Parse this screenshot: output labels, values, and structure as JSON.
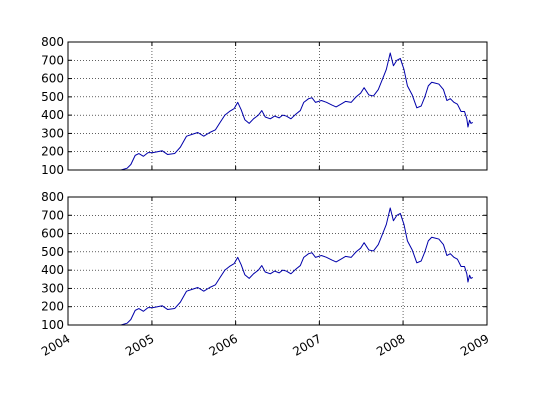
{
  "chart_data": [
    {
      "type": "line",
      "xlim": [
        "2004-01-01",
        "2009-01-01"
      ],
      "ylim": [
        100,
        800
      ],
      "yticks": [
        100,
        200,
        300,
        400,
        500,
        600,
        700,
        800
      ],
      "xticks": [
        "2004-01-01",
        "2005-01-01",
        "2006-01-01",
        "2007-01-01",
        "2008-01-01",
        "2009-01-01"
      ],
      "xtick_labels": [
        "2004",
        "2005",
        "2006",
        "2007",
        "2008",
        "2009"
      ],
      "show_xtick_labels": false,
      "grid": true,
      "series": [
        {
          "color": "#0000aa",
          "points": [
            [
              "2004-08-19",
              100
            ],
            [
              "2004-09-15",
              110
            ],
            [
              "2004-10-01",
              130
            ],
            [
              "2004-10-20",
              180
            ],
            [
              "2004-11-05",
              190
            ],
            [
              "2004-11-25",
              175
            ],
            [
              "2004-12-15",
              195
            ],
            [
              "2005-01-05",
              195
            ],
            [
              "2005-01-25",
              200
            ],
            [
              "2005-02-15",
              205
            ],
            [
              "2005-03-10",
              185
            ],
            [
              "2005-04-10",
              190
            ],
            [
              "2005-05-05",
              225
            ],
            [
              "2005-06-01",
              285
            ],
            [
              "2005-06-25",
              295
            ],
            [
              "2005-07-20",
              305
            ],
            [
              "2005-08-15",
              285
            ],
            [
              "2005-09-10",
              305
            ],
            [
              "2005-10-05",
              320
            ],
            [
              "2005-10-25",
              360
            ],
            [
              "2005-11-15",
              400
            ],
            [
              "2005-12-05",
              420
            ],
            [
              "2005-12-25",
              435
            ],
            [
              "2006-01-10",
              470
            ],
            [
              "2006-01-25",
              430
            ],
            [
              "2006-02-10",
              375
            ],
            [
              "2006-03-01",
              355
            ],
            [
              "2006-03-20",
              380
            ],
            [
              "2006-04-10",
              400
            ],
            [
              "2006-04-25",
              425
            ],
            [
              "2006-05-10",
              390
            ],
            [
              "2006-06-01",
              380
            ],
            [
              "2006-06-20",
              395
            ],
            [
              "2006-07-10",
              385
            ],
            [
              "2006-07-25",
              400
            ],
            [
              "2006-08-10",
              395
            ],
            [
              "2006-08-30",
              380
            ],
            [
              "2006-09-20",
              405
            ],
            [
              "2006-10-10",
              425
            ],
            [
              "2006-10-25",
              470
            ],
            [
              "2006-11-15",
              490
            ],
            [
              "2006-11-30",
              495
            ],
            [
              "2006-12-15",
              470
            ],
            [
              "2007-01-10",
              480
            ],
            [
              "2007-02-01",
              470
            ],
            [
              "2007-02-25",
              455
            ],
            [
              "2007-03-15",
              445
            ],
            [
              "2007-04-05",
              460
            ],
            [
              "2007-04-25",
              475
            ],
            [
              "2007-05-20",
              470
            ],
            [
              "2007-06-10",
              500
            ],
            [
              "2007-06-30",
              520
            ],
            [
              "2007-07-15",
              550
            ],
            [
              "2007-08-05",
              510
            ],
            [
              "2007-08-25",
              505
            ],
            [
              "2007-09-15",
              540
            ],
            [
              "2007-10-01",
              590
            ],
            [
              "2007-10-20",
              650
            ],
            [
              "2007-11-06",
              740
            ],
            [
              "2007-11-20",
              670
            ],
            [
              "2007-12-05",
              700
            ],
            [
              "2007-12-20",
              710
            ],
            [
              "2008-01-05",
              650
            ],
            [
              "2008-01-20",
              560
            ],
            [
              "2008-02-10",
              510
            ],
            [
              "2008-03-01",
              440
            ],
            [
              "2008-03-20",
              450
            ],
            [
              "2008-04-05",
              500
            ],
            [
              "2008-04-20",
              560
            ],
            [
              "2008-05-05",
              580
            ],
            [
              "2008-05-20",
              575
            ],
            [
              "2008-06-05",
              570
            ],
            [
              "2008-06-25",
              540
            ],
            [
              "2008-07-10",
              480
            ],
            [
              "2008-07-25",
              490
            ],
            [
              "2008-08-10",
              470
            ],
            [
              "2008-08-25",
              460
            ],
            [
              "2008-09-10",
              420
            ],
            [
              "2008-09-25",
              420
            ],
            [
              "2008-10-05",
              380
            ],
            [
              "2008-10-10",
              335
            ],
            [
              "2008-10-17",
              372
            ],
            [
              "2008-10-23",
              355
            ],
            [
              "2008-10-31",
              360
            ]
          ]
        }
      ]
    },
    {
      "type": "line",
      "xlim": [
        "2004-01-01",
        "2009-01-01"
      ],
      "ylim": [
        100,
        800
      ],
      "yticks": [
        100,
        200,
        300,
        400,
        500,
        600,
        700,
        800
      ],
      "xticks": [
        "2004-01-01",
        "2005-01-01",
        "2006-01-01",
        "2007-01-01",
        "2008-01-01",
        "2009-01-01"
      ],
      "xtick_labels": [
        "2004",
        "2005",
        "2006",
        "2007",
        "2008",
        "2009"
      ],
      "show_xtick_labels": true,
      "grid": true,
      "series": [
        {
          "color": "#0000aa",
          "points": [
            [
              "2004-08-19",
              100
            ],
            [
              "2004-09-15",
              110
            ],
            [
              "2004-10-01",
              130
            ],
            [
              "2004-10-20",
              180
            ],
            [
              "2004-11-05",
              190
            ],
            [
              "2004-11-25",
              175
            ],
            [
              "2004-12-15",
              195
            ],
            [
              "2005-01-05",
              195
            ],
            [
              "2005-01-25",
              200
            ],
            [
              "2005-02-15",
              205
            ],
            [
              "2005-03-10",
              185
            ],
            [
              "2005-04-10",
              190
            ],
            [
              "2005-05-05",
              225
            ],
            [
              "2005-06-01",
              285
            ],
            [
              "2005-06-25",
              295
            ],
            [
              "2005-07-20",
              305
            ],
            [
              "2005-08-15",
              285
            ],
            [
              "2005-09-10",
              305
            ],
            [
              "2005-10-05",
              320
            ],
            [
              "2005-10-25",
              360
            ],
            [
              "2005-11-15",
              400
            ],
            [
              "2005-12-05",
              420
            ],
            [
              "2005-12-25",
              435
            ],
            [
              "2006-01-10",
              470
            ],
            [
              "2006-01-25",
              430
            ],
            [
              "2006-02-10",
              375
            ],
            [
              "2006-03-01",
              355
            ],
            [
              "2006-03-20",
              380
            ],
            [
              "2006-04-10",
              400
            ],
            [
              "2006-04-25",
              425
            ],
            [
              "2006-05-10",
              390
            ],
            [
              "2006-06-01",
              380
            ],
            [
              "2006-06-20",
              395
            ],
            [
              "2006-07-10",
              385
            ],
            [
              "2006-07-25",
              400
            ],
            [
              "2006-08-10",
              395
            ],
            [
              "2006-08-30",
              380
            ],
            [
              "2006-09-20",
              405
            ],
            [
              "2006-10-10",
              425
            ],
            [
              "2006-10-25",
              470
            ],
            [
              "2006-11-15",
              490
            ],
            [
              "2006-11-30",
              495
            ],
            [
              "2006-12-15",
              470
            ],
            [
              "2007-01-10",
              480
            ],
            [
              "2007-02-01",
              470
            ],
            [
              "2007-02-25",
              455
            ],
            [
              "2007-03-15",
              445
            ],
            [
              "2007-04-05",
              460
            ],
            [
              "2007-04-25",
              475
            ],
            [
              "2007-05-20",
              470
            ],
            [
              "2007-06-10",
              500
            ],
            [
              "2007-06-30",
              520
            ],
            [
              "2007-07-15",
              550
            ],
            [
              "2007-08-05",
              510
            ],
            [
              "2007-08-25",
              505
            ],
            [
              "2007-09-15",
              540
            ],
            [
              "2007-10-01",
              590
            ],
            [
              "2007-10-20",
              650
            ],
            [
              "2007-11-06",
              740
            ],
            [
              "2007-11-20",
              670
            ],
            [
              "2007-12-05",
              700
            ],
            [
              "2007-12-20",
              710
            ],
            [
              "2008-01-05",
              650
            ],
            [
              "2008-01-20",
              560
            ],
            [
              "2008-02-10",
              510
            ],
            [
              "2008-03-01",
              440
            ],
            [
              "2008-03-20",
              450
            ],
            [
              "2008-04-05",
              500
            ],
            [
              "2008-04-20",
              560
            ],
            [
              "2008-05-05",
              580
            ],
            [
              "2008-05-20",
              575
            ],
            [
              "2008-06-05",
              570
            ],
            [
              "2008-06-25",
              540
            ],
            [
              "2008-07-10",
              480
            ],
            [
              "2008-07-25",
              490
            ],
            [
              "2008-08-10",
              470
            ],
            [
              "2008-08-25",
              460
            ],
            [
              "2008-09-10",
              420
            ],
            [
              "2008-09-25",
              420
            ],
            [
              "2008-10-05",
              380
            ],
            [
              "2008-10-10",
              335
            ],
            [
              "2008-10-17",
              372
            ],
            [
              "2008-10-23",
              355
            ],
            [
              "2008-10-31",
              360
            ]
          ]
        }
      ]
    }
  ]
}
